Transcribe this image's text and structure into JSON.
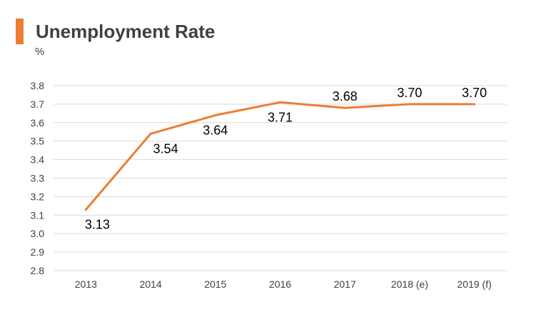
{
  "header": {
    "title": "Unemployment Rate",
    "unit": "%",
    "accent_color": "#ee7d31"
  },
  "chart_data": {
    "type": "line",
    "title": "Unemployment Rate",
    "ylabel": "%",
    "xlabel": "",
    "categories": [
      "2013",
      "2014",
      "2015",
      "2016",
      "2017",
      "2018 (e)",
      "2019 (f)"
    ],
    "series": [
      {
        "values": [
          3.13,
          3.54,
          3.64,
          3.71,
          3.68,
          3.7,
          3.7
        ],
        "labels": [
          "3.13",
          "3.54",
          "3.64",
          "3.71",
          "3.68",
          "3.70",
          "3.70"
        ],
        "color": "#ee7d31"
      }
    ],
    "ylim": [
      2.8,
      3.8
    ],
    "yticks": [
      "2.8",
      "2.9",
      "3.0",
      "3.1",
      "3.2",
      "3.3",
      "3.4",
      "3.5",
      "3.6",
      "3.7",
      "3.8"
    ],
    "grid": true,
    "grid_color": "#d9d9d9",
    "legend": "none"
  }
}
